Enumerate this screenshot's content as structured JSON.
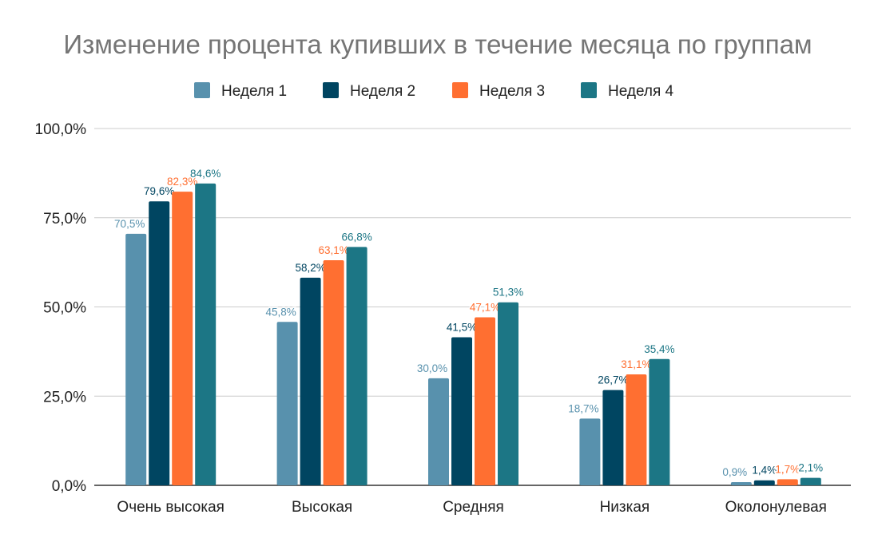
{
  "chart_data": {
    "type": "bar",
    "title": "Изменение процента купивших в течение месяца по группам",
    "categories": [
      "Очень высокая",
      "Высокая",
      "Средняя",
      "Низкая",
      "Околонулевая"
    ],
    "series": [
      {
        "name": "Неделя 1",
        "color": "#5891AD",
        "values": [
          70.5,
          45.8,
          30.0,
          18.7,
          0.9
        ],
        "labels": [
          "70,5%",
          "45,8%",
          "30,0%",
          "18,7%",
          "0,9%"
        ]
      },
      {
        "name": "Неделя 2",
        "color": "#004561",
        "values": [
          79.6,
          58.2,
          41.5,
          26.7,
          1.4
        ],
        "labels": [
          "79,6%",
          "58,2%",
          "41,5%",
          "26,7%",
          "1,4%"
        ]
      },
      {
        "name": "Неделя 3",
        "color": "#FF6F31",
        "values": [
          82.3,
          63.1,
          47.1,
          31.1,
          1.7
        ],
        "labels": [
          "82,3%",
          "63,1%",
          "47,1%",
          "31,1%",
          "1,7%"
        ]
      },
      {
        "name": "Неделя 4",
        "color": "#1C7685",
        "values": [
          84.6,
          66.8,
          51.3,
          35.4,
          2.1
        ],
        "labels": [
          "84,6%",
          "66,8%",
          "51,3%",
          "35,4%",
          "2,1%"
        ]
      }
    ],
    "ylim": [
      0,
      100
    ],
    "yticks": [
      0,
      25,
      50,
      75,
      100
    ],
    "ytick_labels": [
      "0,0%",
      "25,0%",
      "50,0%",
      "75,0%",
      "100,0%"
    ],
    "grid": true,
    "legend_position": "top"
  }
}
